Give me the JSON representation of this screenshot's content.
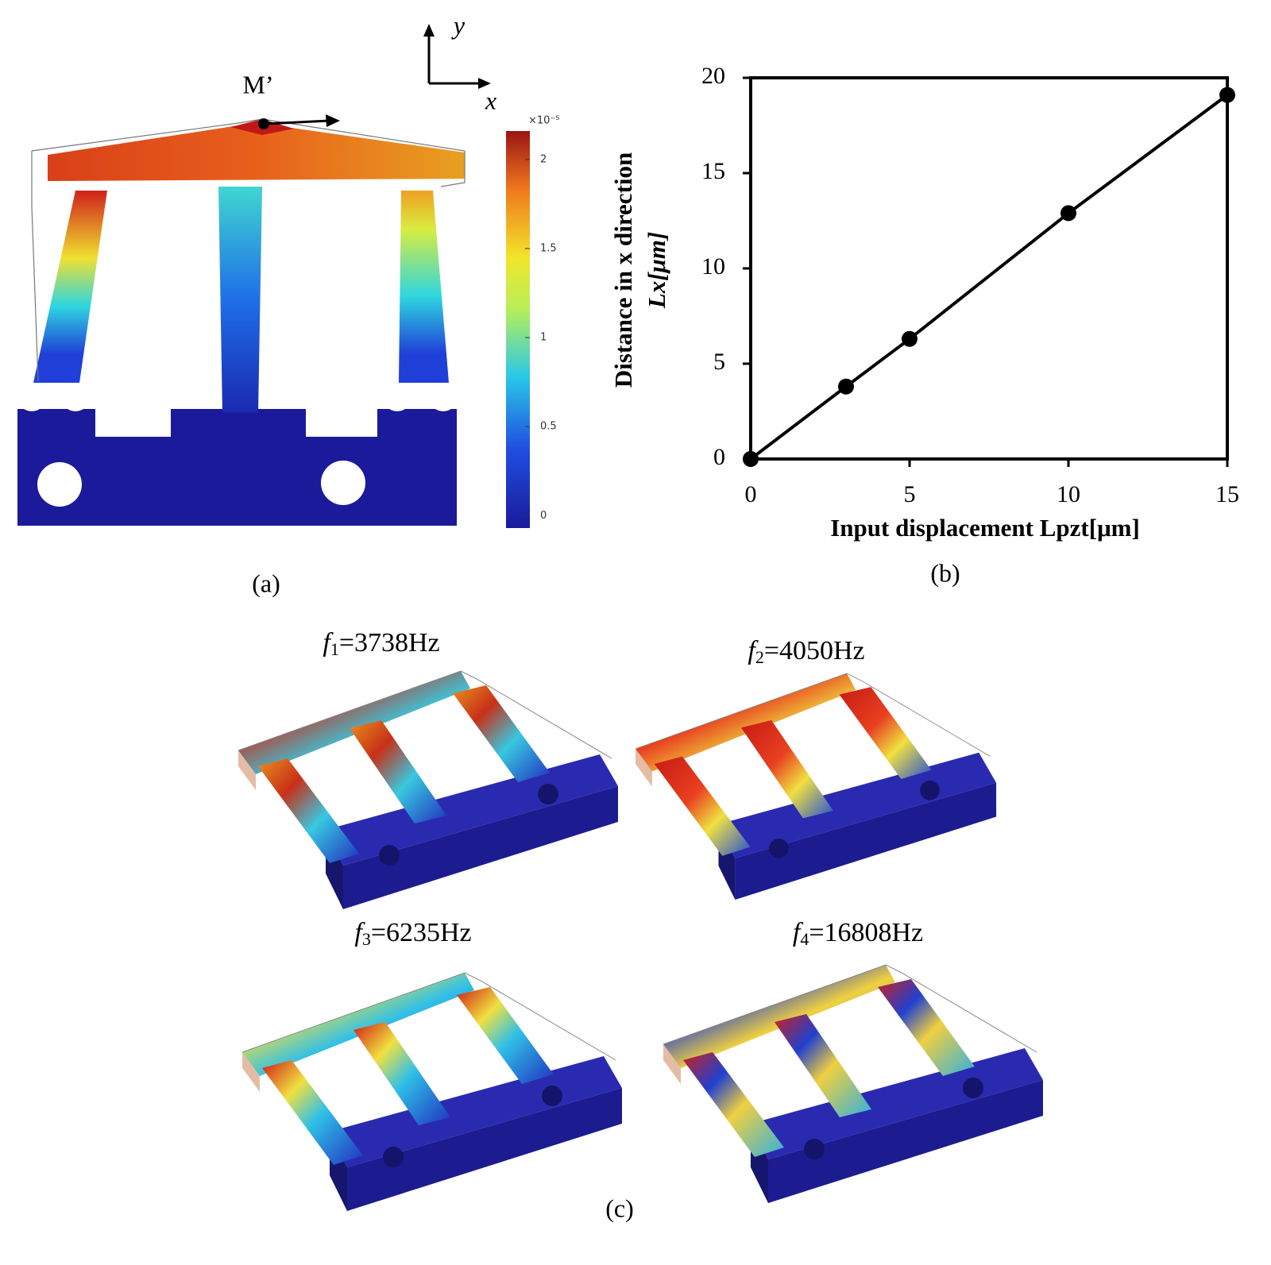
{
  "panel_a": {
    "label": "(a)",
    "point_label": "M’",
    "axis_y": "y",
    "axis_x": "x",
    "colorbar": {
      "exponent": "×10⁻⁵",
      "clim": [
        -0.07,
        2.16
      ],
      "ticks": [
        0,
        0.5,
        1,
        1.5,
        2
      ]
    }
  },
  "chart_data": {
    "type": "line",
    "panel_label": "(b)",
    "x_label": "Input  displacement  Lpzt[μm]",
    "y_label": "Distance  in x direction",
    "y_label_2": "Lx[μm]",
    "x": [
      0,
      3,
      5,
      10,
      15
    ],
    "values": [
      0,
      3.8,
      6.3,
      12.9,
      19.1
    ],
    "color": "#000000",
    "xlim": [
      0,
      15
    ],
    "ylim": [
      0,
      20
    ],
    "xticks": [
      0,
      5,
      10,
      15
    ],
    "yticks": [
      0,
      5,
      10,
      15,
      20
    ]
  },
  "panel_c": {
    "label": "(c)",
    "modes": [
      {
        "symbol": "f",
        "index": "1",
        "text": "=3738Hz"
      },
      {
        "symbol": "f",
        "index": "2",
        "text": "=4050Hz"
      },
      {
        "symbol": "f",
        "index": "3",
        "text": "=6235Hz"
      },
      {
        "symbol": "f",
        "index": "4",
        "text": "=16808Hz"
      }
    ]
  }
}
